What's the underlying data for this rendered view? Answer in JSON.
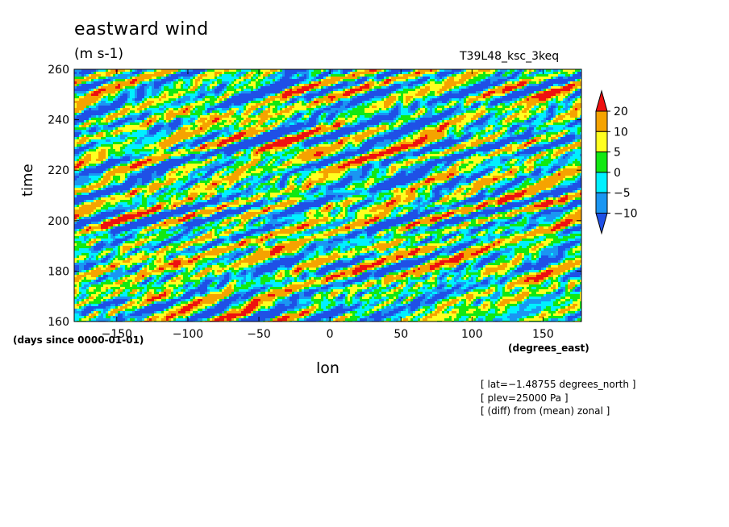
{
  "chart_data": {
    "type": "heatmap",
    "title": "eastward wind",
    "units": "(m s-1)",
    "run_label": "T39L48_ksc_3keq",
    "xlabel": "lon",
    "x_unit": "(degrees_east)",
    "ylabel": "time",
    "y_unit": "(days since 0000-01-01)",
    "xlim": [
      -180,
      177
    ],
    "ylim": [
      160,
      260
    ],
    "x_ticks": [
      -150,
      -100,
      -50,
      0,
      50,
      100,
      150
    ],
    "x_tick_labels": [
      "−150",
      "−100",
      "−50",
      "0",
      "50",
      "100",
      "150"
    ],
    "y_ticks": [
      160,
      180,
      200,
      220,
      240,
      260
    ],
    "y_tick_labels": [
      "160",
      "180",
      "200",
      "220",
      "240",
      "260"
    ],
    "contour_levels": [
      -10,
      -5,
      0,
      5,
      10,
      20
    ],
    "colorbar_labels": [
      "20",
      "10",
      "5",
      "0",
      "−5",
      "−10"
    ],
    "colorbar_colors": [
      "#1f50e6",
      "#1a96f2",
      "#00f0ff",
      "#12e812",
      "#ffff20",
      "#f5a300",
      "#ee1010"
    ],
    "features": [
      {
        "lon": -120,
        "time": 170,
        "value": 22
      },
      {
        "lon": -95,
        "time": 242,
        "value": 22
      },
      {
        "lon": 135,
        "time": 178,
        "value": 22
      },
      {
        "lon": -20,
        "time": 228,
        "value": 21
      },
      {
        "lon": 150,
        "time": 250,
        "value": 21
      },
      {
        "lon": -110,
        "time": 183,
        "value": 21
      },
      {
        "lon": 55,
        "time": 188,
        "value": 20
      },
      {
        "lon": -30,
        "time": 188,
        "value": 20
      },
      {
        "lon": 150,
        "time": 207,
        "value": 20
      },
      {
        "lon": 40,
        "time": 240,
        "value": -12
      },
      {
        "lon": 60,
        "time": 215,
        "value": -12
      },
      {
        "lon": -60,
        "time": 250,
        "value": -11
      },
      {
        "lon": 10,
        "time": 165,
        "value": -11
      },
      {
        "lon": 120,
        "time": 238,
        "value": -11
      }
    ],
    "annotations": [
      "[ lat=−1.48755 degrees_north ]",
      "[ plev=25000 Pa ]",
      "[ (diff) from (mean) zonal ]"
    ],
    "grid": false
  }
}
